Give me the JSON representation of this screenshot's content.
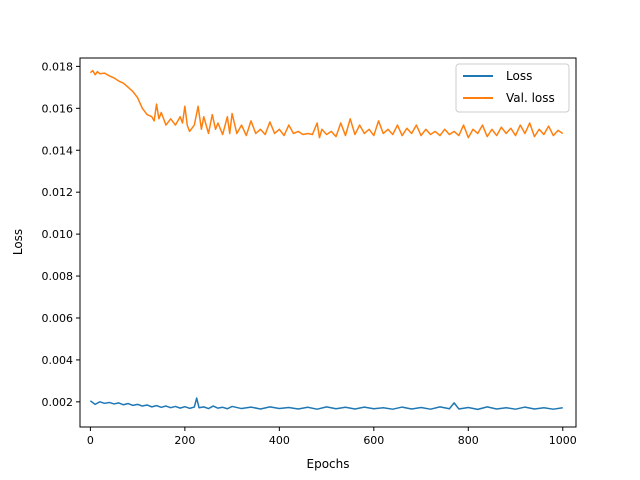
{
  "chart_data": {
    "type": "line",
    "title": "",
    "xlabel": "Epochs",
    "ylabel": "Loss",
    "xlim": [
      -22,
      1028
    ],
    "ylim": [
      0.0008,
      0.0184
    ],
    "xticks": [
      0,
      200,
      400,
      600,
      800,
      1000
    ],
    "xtick_labels": [
      "0",
      "200",
      "400",
      "600",
      "800",
      "1000"
    ],
    "yticks": [
      0.002,
      0.004,
      0.006,
      0.008,
      0.01,
      0.012,
      0.014,
      0.016,
      0.018
    ],
    "ytick_labels": [
      "0.002",
      "0.004",
      "0.006",
      "0.008",
      "0.010",
      "0.012",
      "0.014",
      "0.016",
      "0.018"
    ],
    "grid": false,
    "legend_position": "top-right",
    "series": [
      {
        "name": "Loss",
        "color": "#1f77b4",
        "x": [
          0,
          10,
          20,
          30,
          40,
          50,
          60,
          70,
          80,
          90,
          100,
          110,
          120,
          130,
          140,
          150,
          160,
          170,
          180,
          190,
          200,
          210,
          220,
          225,
          230,
          240,
          250,
          260,
          270,
          280,
          290,
          300,
          320,
          340,
          360,
          380,
          400,
          420,
          440,
          460,
          480,
          500,
          520,
          540,
          560,
          580,
          600,
          620,
          640,
          660,
          680,
          700,
          720,
          740,
          760,
          770,
          780,
          800,
          820,
          840,
          860,
          880,
          900,
          920,
          940,
          960,
          980,
          1000
        ],
        "y": [
          0.00205,
          0.00188,
          0.002,
          0.00193,
          0.00197,
          0.0019,
          0.00195,
          0.00186,
          0.00192,
          0.00183,
          0.00188,
          0.0018,
          0.00185,
          0.00176,
          0.00182,
          0.00174,
          0.0018,
          0.00172,
          0.00178,
          0.0017,
          0.00177,
          0.00169,
          0.00175,
          0.00218,
          0.00172,
          0.00176,
          0.00168,
          0.0018,
          0.0017,
          0.00174,
          0.00167,
          0.00178,
          0.00168,
          0.00175,
          0.00166,
          0.00176,
          0.00168,
          0.00173,
          0.00166,
          0.00174,
          0.00165,
          0.00176,
          0.00167,
          0.00174,
          0.00166,
          0.00175,
          0.00167,
          0.00172,
          0.00165,
          0.00175,
          0.00166,
          0.00173,
          0.00165,
          0.00176,
          0.00167,
          0.00195,
          0.00166,
          0.00173,
          0.00164,
          0.00176,
          0.00166,
          0.00172,
          0.00165,
          0.00175,
          0.00166,
          0.00172,
          0.00165,
          0.00172
        ]
      },
      {
        "name": "Val. loss",
        "color": "#ff7f0e",
        "x": [
          0,
          5,
          10,
          15,
          20,
          30,
          40,
          50,
          60,
          70,
          80,
          90,
          100,
          110,
          120,
          130,
          135,
          140,
          145,
          150,
          160,
          170,
          180,
          190,
          195,
          200,
          205,
          210,
          220,
          228,
          235,
          240,
          250,
          258,
          265,
          270,
          280,
          290,
          295,
          300,
          310,
          320,
          330,
          340,
          350,
          360,
          370,
          380,
          390,
          400,
          410,
          420,
          430,
          440,
          450,
          460,
          470,
          480,
          485,
          490,
          500,
          510,
          520,
          530,
          540,
          550,
          560,
          570,
          580,
          590,
          600,
          610,
          620,
          630,
          640,
          650,
          660,
          670,
          680,
          690,
          700,
          710,
          720,
          730,
          740,
          750,
          760,
          770,
          780,
          790,
          800,
          810,
          820,
          830,
          840,
          850,
          860,
          870,
          880,
          890,
          900,
          910,
          920,
          930,
          940,
          950,
          960,
          970,
          980,
          990,
          1000
        ],
        "y": [
          0.0177,
          0.0178,
          0.0176,
          0.01775,
          0.01765,
          0.01768,
          0.01755,
          0.01745,
          0.0173,
          0.0172,
          0.017,
          0.0168,
          0.0165,
          0.016,
          0.0157,
          0.0156,
          0.0154,
          0.0162,
          0.0155,
          0.0158,
          0.0152,
          0.0155,
          0.0152,
          0.0156,
          0.0153,
          0.0161,
          0.0152,
          0.0149,
          0.0152,
          0.0161,
          0.015,
          0.0156,
          0.0148,
          0.0157,
          0.015,
          0.0153,
          0.01475,
          0.0156,
          0.0148,
          0.01575,
          0.0148,
          0.0152,
          0.0147,
          0.0154,
          0.0148,
          0.015,
          0.01475,
          0.01535,
          0.0148,
          0.015,
          0.0147,
          0.0152,
          0.0148,
          0.0149,
          0.01475,
          0.0148,
          0.01475,
          0.0153,
          0.0146,
          0.015,
          0.01475,
          0.0149,
          0.01465,
          0.0153,
          0.0147,
          0.0155,
          0.01475,
          0.0152,
          0.0148,
          0.015,
          0.0147,
          0.0154,
          0.0148,
          0.015,
          0.01475,
          0.0152,
          0.0147,
          0.01505,
          0.0148,
          0.0152,
          0.0147,
          0.015,
          0.01475,
          0.0149,
          0.0147,
          0.015,
          0.01475,
          0.0149,
          0.0147,
          0.0152,
          0.0146,
          0.015,
          0.0148,
          0.0152,
          0.01465,
          0.015,
          0.0147,
          0.0151,
          0.0148,
          0.01505,
          0.0147,
          0.0152,
          0.0148,
          0.0153,
          0.01465,
          0.015,
          0.01475,
          0.01515,
          0.0147,
          0.01495,
          0.0148
        ]
      }
    ]
  }
}
